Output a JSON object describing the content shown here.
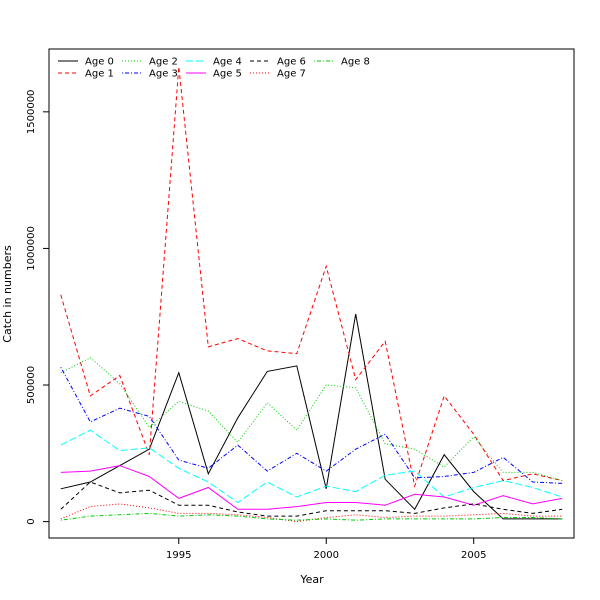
{
  "chart_data": {
    "type": "line",
    "title": "",
    "xlabel": "Year",
    "ylabel": "Catch in numbers",
    "xlim": [
      1990.6,
      2008.4
    ],
    "ylim": [
      -60000,
      1730000
    ],
    "grid": false,
    "legend_position": "top-left",
    "x_ticks": [
      1995,
      2000,
      2005
    ],
    "y_ticks": [
      0,
      500000,
      1000000,
      1500000
    ],
    "x": [
      1991,
      1992,
      1993,
      1994,
      1995,
      1996,
      1997,
      1998,
      1999,
      2000,
      2001,
      2002,
      2003,
      2004,
      2005,
      2006,
      2007,
      2008
    ],
    "series": [
      {
        "name": "Age 0",
        "color": "#000000",
        "dash": "solid",
        "values": [
          120000,
          145000,
          205000,
          265000,
          545000,
          175000,
          380000,
          550000,
          570000,
          120000,
          760000,
          155000,
          45000,
          245000,
          110000,
          10000,
          10000,
          10000
        ]
      },
      {
        "name": "Age 1",
        "color": "#ff0000",
        "dash": "dashed",
        "values": [
          830000,
          460000,
          535000,
          245000,
          1665000,
          640000,
          670000,
          625000,
          615000,
          935000,
          520000,
          660000,
          130000,
          460000,
          320000,
          150000,
          175000,
          150000
        ]
      },
      {
        "name": "Age 2",
        "color": "#00cd00",
        "dash": "dotted",
        "values": [
          545000,
          600000,
          505000,
          345000,
          440000,
          405000,
          290000,
          435000,
          335000,
          500000,
          490000,
          285000,
          265000,
          200000,
          310000,
          180000,
          180000,
          150000
        ]
      },
      {
        "name": "Age 3",
        "color": "#0000ff",
        "dash": "dotdash",
        "values": [
          565000,
          365000,
          415000,
          385000,
          225000,
          195000,
          280000,
          185000,
          250000,
          185000,
          265000,
          320000,
          160000,
          165000,
          180000,
          235000,
          145000,
          140000
        ]
      },
      {
        "name": "Age 4",
        "color": "#00ffff",
        "dash": "longdash",
        "values": [
          280000,
          335000,
          260000,
          270000,
          195000,
          145000,
          70000,
          145000,
          90000,
          130000,
          110000,
          170000,
          185000,
          90000,
          125000,
          150000,
          125000,
          90000
        ]
      },
      {
        "name": "Age 5",
        "color": "#ff00ff",
        "dash": "solid",
        "values": [
          180000,
          185000,
          205000,
          165000,
          85000,
          125000,
          45000,
          45000,
          55000,
          70000,
          70000,
          60000,
          100000,
          90000,
          60000,
          95000,
          65000,
          85000
        ]
      },
      {
        "name": "Age 6",
        "color": "#000000",
        "dash": "dashed",
        "values": [
          45000,
          145000,
          105000,
          115000,
          60000,
          60000,
          35000,
          20000,
          20000,
          40000,
          40000,
          40000,
          30000,
          50000,
          65000,
          45000,
          30000,
          45000
        ]
      },
      {
        "name": "Age 7",
        "color": "#ff0000",
        "dash": "dotted",
        "values": [
          10000,
          55000,
          65000,
          50000,
          30000,
          30000,
          25000,
          15000,
          0,
          15000,
          25000,
          15000,
          20000,
          20000,
          25000,
          30000,
          20000,
          20000
        ]
      },
      {
        "name": "Age 8",
        "color": "#00cd00",
        "dash": "dotdash",
        "values": [
          5000,
          20000,
          25000,
          30000,
          20000,
          25000,
          20000,
          10000,
          5000,
          10000,
          5000,
          10000,
          10000,
          10000,
          10000,
          15000,
          15000,
          10000
        ]
      }
    ]
  }
}
